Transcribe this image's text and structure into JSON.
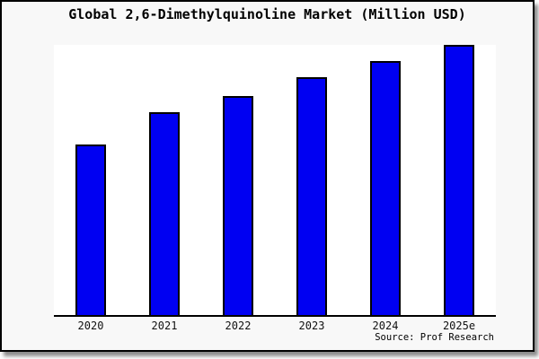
{
  "window": {
    "title": "Global 2,6-Dimethylquinoline Market (Million USD)"
  },
  "footer": {
    "source": "Source: Prof Research"
  },
  "chart_data": {
    "type": "bar",
    "title": "Global 2,6-Dimethylquinoline Market (Million USD)",
    "categories": [
      "2020",
      "2021",
      "2022",
      "2023",
      "2024",
      "2025e"
    ],
    "values": [
      63,
      75,
      81,
      88,
      94,
      100
    ],
    "values_note": "relative bar heights (percent of tallest 2025e bar); chart shows no numeric y-axis",
    "xlabel": "",
    "ylabel": "",
    "ylim": [
      0,
      100
    ],
    "grid": false,
    "legend": "none",
    "source": "Source: Prof Research"
  },
  "colors": {
    "bar_fill": "#0000f2",
    "bar_border": "#000000",
    "frame_background": "#f8f8f8",
    "plot_background": "#ffffff",
    "frame_border": "#000000",
    "shadow": "#8d8d8d"
  }
}
